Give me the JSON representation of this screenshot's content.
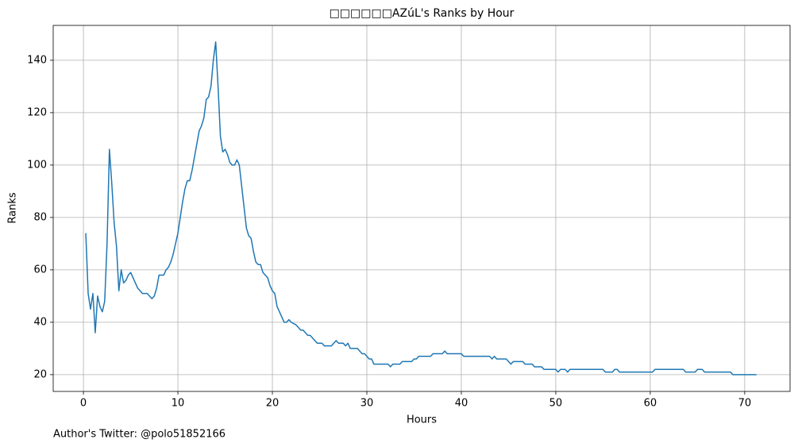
{
  "chart_data": {
    "type": "line",
    "title": "□□□□□□AZúL's Ranks by Hour",
    "xlabel": "Hours",
    "ylabel": "Ranks",
    "annotation": "Author's Twitter: @polo51852166",
    "grid": true,
    "xlim": [
      -3.2,
      74.8
    ],
    "ylim": [
      13.6,
      153.3
    ],
    "xticks": [
      0,
      10,
      20,
      30,
      40,
      50,
      60,
      70
    ],
    "yticks": [
      20,
      40,
      60,
      80,
      100,
      120,
      140
    ],
    "series": [
      {
        "name": "Ranks",
        "color": "#1f77b4",
        "x": [
          0.25,
          0.5,
          0.75,
          1.0,
          1.25,
          1.5,
          1.75,
          2.0,
          2.25,
          2.5,
          2.75,
          3.0,
          3.25,
          3.5,
          3.75,
          4.0,
          4.25,
          4.5,
          4.75,
          5.0,
          5.25,
          5.5,
          5.75,
          6.0,
          6.25,
          6.75,
          7.0,
          7.25,
          7.5,
          7.75,
          8.0,
          8.5,
          8.75,
          9.0,
          9.25,
          9.5,
          9.75,
          10.0,
          10.25,
          10.5,
          10.75,
          11.0,
          11.25,
          11.5,
          11.75,
          12.0,
          12.25,
          12.5,
          12.75,
          13.0,
          13.25,
          13.5,
          13.75,
          14.0,
          14.25,
          14.5,
          14.75,
          15.0,
          15.25,
          15.5,
          15.75,
          16.0,
          16.25,
          16.5,
          16.75,
          17.0,
          17.25,
          17.5,
          17.75,
          18.0,
          18.25,
          18.5,
          18.75,
          19.0,
          19.25,
          19.5,
          19.75,
          20.0,
          20.25,
          20.5,
          20.75,
          21.0,
          21.25,
          21.5,
          21.75,
          22.0,
          22.5,
          23.0,
          23.25,
          23.5,
          23.75,
          24.0,
          24.5,
          24.75,
          25.25,
          25.5,
          26.25,
          26.5,
          26.75,
          27.0,
          27.5,
          27.75,
          28.0,
          28.25,
          29.0,
          29.5,
          29.75,
          30.0,
          30.25,
          30.5,
          30.75,
          32.25,
          32.5,
          32.75,
          33.5,
          33.75,
          34.75,
          35.0,
          35.25,
          35.5,
          36.75,
          37.0,
          38.0,
          38.25,
          38.5,
          40.0,
          40.25,
          43.0,
          43.25,
          43.5,
          43.75,
          44.75,
          45.0,
          45.25,
          45.5,
          46.5,
          46.75,
          47.5,
          47.75,
          48.5,
          48.75,
          50.0,
          50.25,
          50.5,
          51.0,
          51.25,
          51.5,
          55.0,
          55.25,
          56.0,
          56.25,
          56.5,
          56.75,
          60.25,
          60.5,
          63.5,
          63.75,
          64.75,
          65.0,
          65.5,
          65.75,
          68.5,
          68.75,
          71.25
        ],
        "values": [
          74,
          51,
          45,
          51,
          36,
          50,
          46,
          44,
          48,
          70,
          106,
          93,
          78,
          69,
          52,
          60,
          55,
          56,
          58,
          59,
          57,
          55,
          53,
          52,
          51,
          51,
          50,
          49,
          50,
          53,
          58,
          58,
          60,
          61,
          63,
          66,
          70,
          74,
          80,
          86,
          91,
          94,
          94,
          98,
          103,
          108,
          113,
          115,
          118,
          125,
          126,
          130,
          140,
          147,
          130,
          111,
          105,
          106,
          104,
          101,
          100,
          100,
          102,
          100,
          92,
          84,
          76,
          73,
          72,
          67,
          63,
          62,
          62,
          59,
          58,
          57,
          54,
          52,
          51,
          46,
          44,
          42,
          40,
          40,
          41,
          40,
          39,
          37,
          37,
          36,
          35,
          35,
          33,
          32,
          32,
          31,
          31,
          32,
          33,
          32,
          32,
          31,
          32,
          30,
          30,
          28,
          28,
          27,
          26,
          26,
          24,
          24,
          23,
          24,
          24,
          25,
          25,
          26,
          26,
          27,
          27,
          28,
          28,
          29,
          28,
          28,
          27,
          27,
          26,
          27,
          26,
          26,
          25,
          24,
          25,
          25,
          24,
          24,
          23,
          23,
          22,
          22,
          21,
          22,
          22,
          21,
          22,
          22,
          21,
          21,
          22,
          22,
          21,
          21,
          22,
          22,
          21,
          21,
          22,
          22,
          21,
          21,
          20,
          20
        ]
      }
    ]
  }
}
